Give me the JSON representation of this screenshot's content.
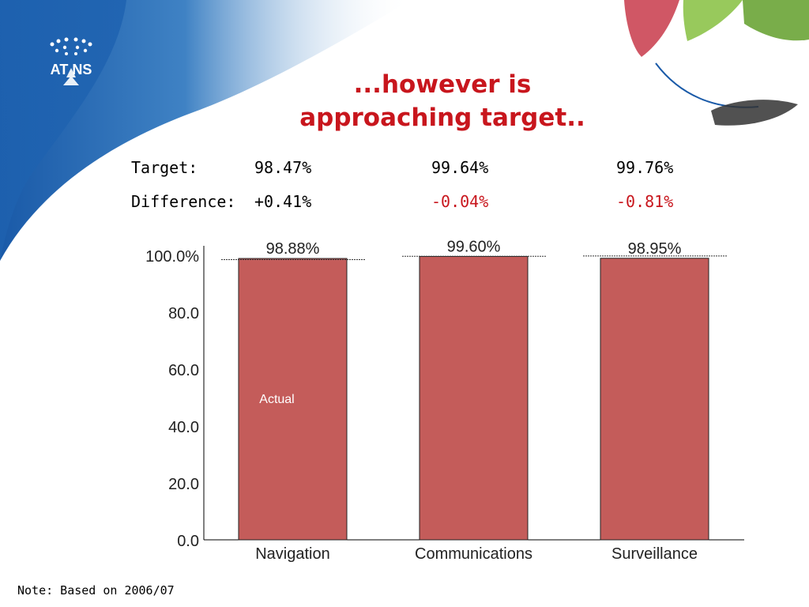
{
  "slide": {
    "title_line1": "...however is",
    "title_line2": "approaching target..",
    "note": "Note: Based on 2006/07",
    "logo_text": "AT NS",
    "accent_color": "#c8161d",
    "bg_blue": "#1a5aa8",
    "bg_green": "#6aa436"
  },
  "summary": {
    "target_label": "Target:",
    "difference_label": "Difference:",
    "targets": [
      "98.47%",
      "99.64%",
      "99.76%"
    ],
    "differences": [
      "+0.41%",
      "-0.04%",
      "-0.81%"
    ]
  },
  "chart_data": {
    "type": "bar",
    "categories": [
      "Navigation",
      "Communications",
      "Surveillance"
    ],
    "values": [
      98.88,
      99.6,
      98.95
    ],
    "value_labels": [
      "98.88%",
      "99.60%",
      "98.95%"
    ],
    "ytick_labels": [
      "100.0%",
      "80.0",
      "60.0",
      "40.0",
      "20.0",
      "0.0"
    ],
    "yticks": [
      100,
      80,
      60,
      40,
      20,
      0
    ],
    "ylim": [
      0,
      100
    ],
    "series_label": "Actual",
    "bar_color": "#c45c5a",
    "target_lines": [
      98.47,
      99.64,
      99.76
    ]
  }
}
